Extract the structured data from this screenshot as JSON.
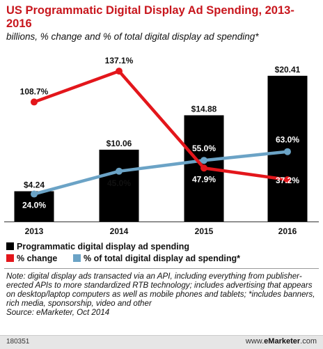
{
  "header": {
    "title": "US Programmatic Digital Display Ad Spending, 2013-2016",
    "subtitle": "billions, % change and % of total digital display ad spending*"
  },
  "chart_data": {
    "type": "bar",
    "categories": [
      "2013",
      "2014",
      "2015",
      "2016"
    ],
    "series": [
      {
        "name": "Programmatic digital display ad spending",
        "kind": "bar",
        "values": [
          4.24,
          10.06,
          14.88,
          20.41
        ],
        "labels": [
          "$4.24",
          "$10.06",
          "$14.88",
          "$20.41"
        ],
        "color": "#000000"
      },
      {
        "name": "% change",
        "kind": "line",
        "values": [
          108.7,
          137.1,
          47.9,
          37.2
        ],
        "labels": [
          "108.7%",
          "137.1%",
          "47.9%",
          "37.2%"
        ],
        "color": "#e3161b"
      },
      {
        "name": "% of total digital display ad spending*",
        "kind": "line",
        "values": [
          24.0,
          45.0,
          55.0,
          63.0
        ],
        "labels": [
          "24.0%",
          "45.0%",
          "55.0%",
          "63.0%"
        ],
        "color": "#6ba3c6"
      }
    ],
    "grid": false,
    "legend": "bottom"
  },
  "legend": {
    "bar": "Programmatic digital display ad spending",
    "change": "% change",
    "share": "% of total digital display ad spending*"
  },
  "note": "Note: digital display ads transacted via an API, including everything from publisher-erected APIs to more standardized RTB technology; includes advertising that appears on desktop/laptop computers as well as mobile phones and tablets; *includes banners, rich media, sponsorship, video and other",
  "source": "Source: eMarketer, Oct 2014",
  "footer": {
    "code": "180351",
    "brand_prefix": "www.",
    "brand_name": "eMarketer",
    "brand_suffix": ".com"
  }
}
